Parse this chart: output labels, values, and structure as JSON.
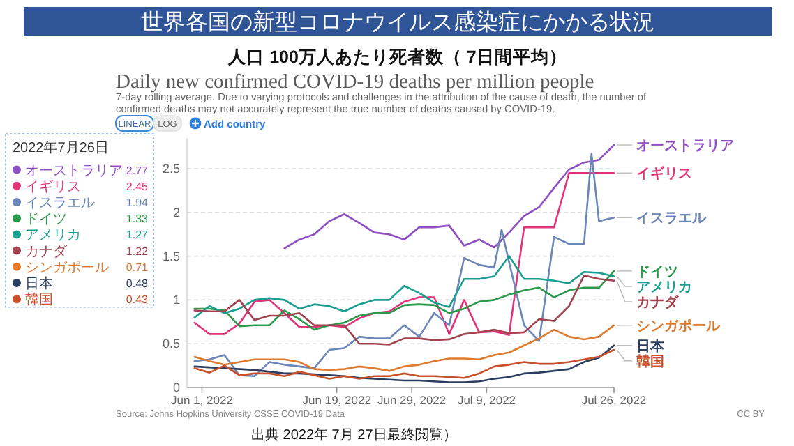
{
  "chart_data": {
    "type": "line",
    "title": "世界各国の新型コロナウイルス感染症にかかる状況",
    "subtitle": "人口 100万人あたり死者数（ 7日間平均）",
    "annotations": [
      "Daily new confirmed COVID-19 deaths per million people",
      "7-day rolling average. Due to varying protocols and challenges in the attribution of the cause of death, the number of confirmed deaths may not accurately represent the true number of deaths caused by COVID-19.",
      "Source: Johns Hopkins University CSSE COVID-19 Data",
      "CC BY",
      "出典 2022年 7月 27日最終閲覧）",
      "LINEAR",
      "LOG",
      "Add country",
      "2.77",
      "2.45",
      "1.94",
      "1.33",
      "1.27",
      "1.22",
      "0.71",
      "0.48",
      "0.43"
    ],
    "legend_title": "2022年7月26日",
    "legend": "top left",
    "grid": "y",
    "xlim": [
      "2022-05-30",
      "2022-07-26"
    ],
    "xticks": [
      {
        "value": "2022-06-01",
        "label": "Jun 1, 2022"
      },
      {
        "value": "2022-06-19",
        "label": "Jun 19, 2022"
      },
      {
        "value": "2022-06-29",
        "label": "Jun 29, 2022"
      },
      {
        "value": "2022-07-09",
        "label": "Jul 9, 2022"
      },
      {
        "value": "2022-07-26",
        "label": "Jul 26, 2022"
      }
    ],
    "ylim": [
      0,
      2.85
    ],
    "yticks": [
      0,
      0.5,
      1,
      1.5,
      2,
      2.5
    ],
    "x": [
      "2022-05-31",
      "2022-06-02",
      "2022-06-04",
      "2022-06-06",
      "2022-06-08",
      "2022-06-10",
      "2022-06-12",
      "2022-06-14",
      "2022-06-16",
      "2022-06-18",
      "2022-06-20",
      "2022-06-22",
      "2022-06-24",
      "2022-06-26",
      "2022-06-28",
      "2022-06-30",
      "2022-07-02",
      "2022-07-04",
      "2022-07-06",
      "2022-07-08",
      "2022-07-10",
      "2022-07-12",
      "2022-07-14",
      "2022-07-16",
      "2022-07-18",
      "2022-07-20",
      "2022-07-22",
      "2022-07-24",
      "2022-07-26"
    ],
    "series": [
      {
        "name": "オーストラリア",
        "color": "#8e4fc2",
        "values": [
          null,
          null,
          null,
          null,
          null,
          null,
          1.59,
          1.69,
          1.75,
          1.9,
          1.98,
          1.88,
          1.77,
          1.75,
          1.69,
          1.83,
          1.83,
          1.85,
          1.62,
          1.69,
          1.6,
          1.77,
          1.96,
          2.06,
          2.28,
          2.49,
          2.57,
          2.6,
          2.77
        ]
      },
      {
        "name": "イギリス",
        "color": "#e0357a",
        "values": [
          0.74,
          0.61,
          0.61,
          0.73,
          0.98,
          1.0,
          0.85,
          0.69,
          0.69,
          0.71,
          0.69,
          0.79,
          0.85,
          0.87,
          0.98,
          1.03,
          1.03,
          0.61,
          1.0,
          0.63,
          0.64,
          0.6,
          1.83,
          1.83,
          1.83,
          2.45,
          2.45,
          2.45,
          2.45
        ]
      },
      {
        "name": "イスラエル",
        "color": "#6b86b8",
        "x": [
          "2022-05-31",
          "2022-06-02",
          "2022-06-04",
          "2022-06-06",
          "2022-06-08",
          "2022-06-10",
          "2022-06-12",
          "2022-06-14",
          "2022-06-16",
          "2022-06-18",
          "2022-06-20",
          "2022-06-22",
          "2022-06-24",
          "2022-06-26",
          "2022-06-28",
          "2022-06-30",
          "2022-07-02",
          "2022-07-04",
          "2022-07-06",
          "2022-07-08",
          "2022-07-10",
          "2022-07-11",
          "2022-07-12",
          "2022-07-14",
          "2022-07-16",
          "2022-07-18",
          "2022-07-20",
          "2022-07-22",
          "2022-07-23",
          "2022-07-24",
          "2022-07-26"
        ],
        "values": [
          0.3,
          0.32,
          0.37,
          0.14,
          0.13,
          0.29,
          0.26,
          0.24,
          0.22,
          0.43,
          0.45,
          0.58,
          0.56,
          0.56,
          0.71,
          0.58,
          0.85,
          0.71,
          1.48,
          1.4,
          1.37,
          1.8,
          1.43,
          0.71,
          0.53,
          1.72,
          1.64,
          1.64,
          2.67,
          1.9,
          1.94
        ]
      },
      {
        "name": "ドイツ",
        "color": "#2a9a4a",
        "values": [
          0.9,
          0.9,
          0.88,
          0.7,
          0.71,
          0.71,
          0.88,
          0.78,
          0.66,
          0.71,
          0.74,
          0.82,
          0.85,
          0.85,
          0.94,
          0.95,
          0.94,
          0.85,
          0.9,
          0.98,
          1.0,
          1.06,
          1.11,
          1.14,
          1.03,
          1.11,
          1.14,
          1.14,
          1.33
        ]
      },
      {
        "name": "アメリカ",
        "color": "#1a9e8f",
        "values": [
          0.8,
          0.93,
          0.85,
          0.9,
          1.0,
          1.02,
          1.0,
          0.9,
          0.95,
          0.93,
          0.87,
          0.95,
          1.0,
          1.0,
          1.16,
          1.08,
          0.97,
          0.92,
          1.24,
          1.24,
          1.27,
          1.5,
          1.24,
          1.24,
          1.22,
          1.19,
          1.32,
          1.31,
          1.27
        ]
      },
      {
        "name": "カナダ",
        "color": "#a0434f",
        "values": [
          0.88,
          0.87,
          0.87,
          1.0,
          0.77,
          0.82,
          0.82,
          0.85,
          0.71,
          0.71,
          0.71,
          0.5,
          0.5,
          0.49,
          0.56,
          0.56,
          0.54,
          0.55,
          0.61,
          0.63,
          0.66,
          0.62,
          0.63,
          0.78,
          0.76,
          0.93,
          1.28,
          1.24,
          1.22
        ]
      },
      {
        "name": "シンガポール",
        "color": "#e07a2e",
        "values": [
          0.35,
          0.3,
          0.26,
          0.29,
          0.32,
          0.32,
          0.32,
          0.29,
          0.21,
          0.2,
          0.21,
          0.24,
          0.22,
          0.19,
          0.24,
          0.26,
          0.3,
          0.33,
          0.33,
          0.32,
          0.37,
          0.4,
          0.48,
          0.56,
          0.66,
          0.58,
          0.55,
          0.58,
          0.71
        ]
      },
      {
        "name": "日本",
        "color": "#2c3e60",
        "values": [
          0.24,
          0.23,
          0.22,
          0.21,
          0.2,
          0.18,
          0.16,
          0.16,
          0.15,
          0.14,
          0.13,
          0.11,
          0.1,
          0.09,
          0.08,
          0.08,
          0.07,
          0.06,
          0.06,
          0.07,
          0.1,
          0.12,
          0.16,
          0.17,
          0.19,
          0.21,
          0.29,
          0.34,
          0.48
        ]
      },
      {
        "name": "韓国",
        "color": "#c8502a",
        "values": [
          0.22,
          0.17,
          0.25,
          0.14,
          0.16,
          0.16,
          0.13,
          0.18,
          0.14,
          0.1,
          0.13,
          0.1,
          0.13,
          0.13,
          0.16,
          0.13,
          0.13,
          0.12,
          0.11,
          0.16,
          0.24,
          0.26,
          0.29,
          0.27,
          0.27,
          0.29,
          0.32,
          0.35,
          0.43
        ]
      }
    ]
  }
}
